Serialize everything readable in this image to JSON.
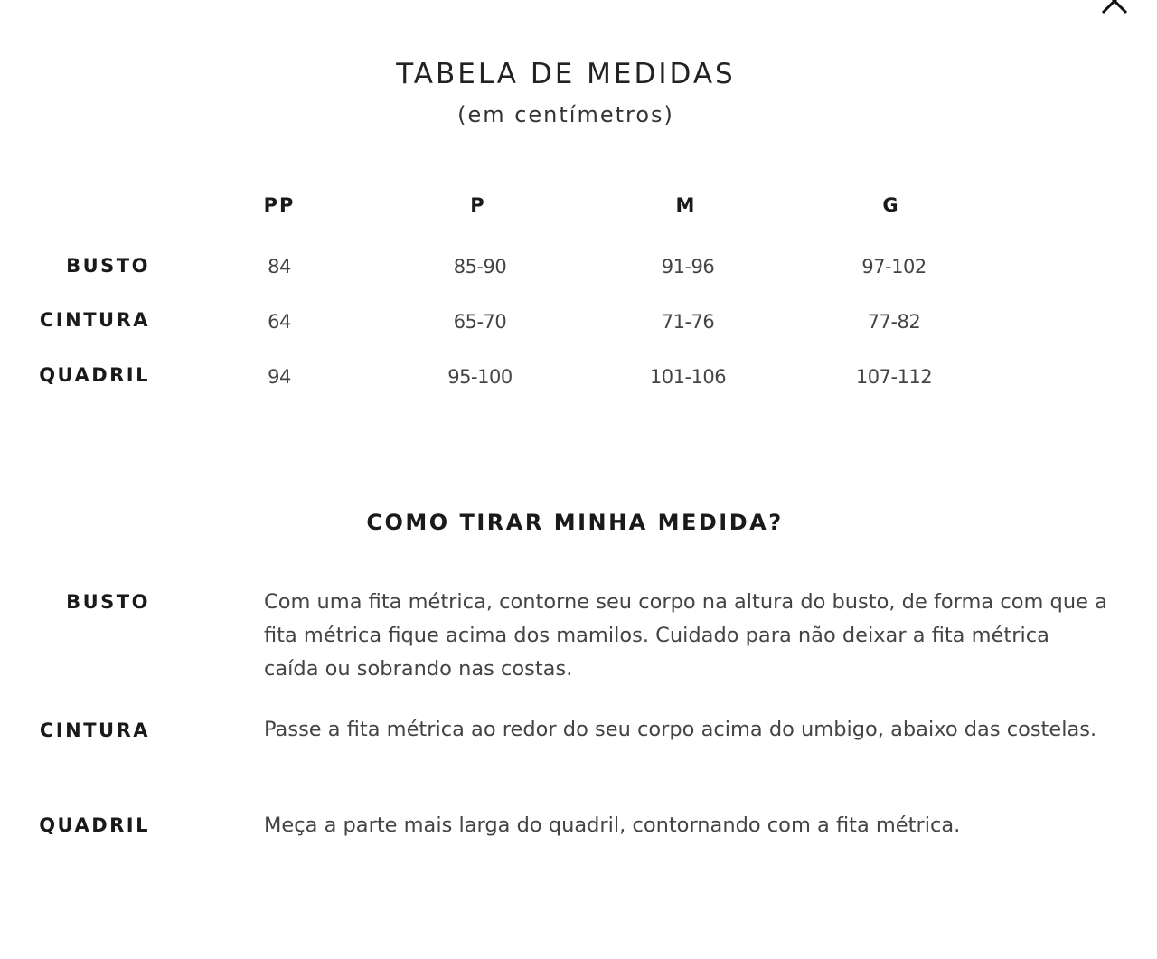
{
  "close_icon": "close-icon",
  "title": "TABELA DE MEDIDAS",
  "subtitle": "(em centímetros)",
  "table": {
    "columns": [
      "PP",
      "P",
      "M",
      "G"
    ],
    "rows": [
      {
        "label": "BUSTO",
        "values": [
          "84",
          "85-90",
          "91-96",
          "97-102"
        ]
      },
      {
        "label": "CINTURA",
        "values": [
          "64",
          "65-70",
          "71-76",
          "77-82"
        ]
      },
      {
        "label": "QUADRIL",
        "values": [
          "94",
          "95-100",
          "101-106",
          "107-112"
        ]
      }
    ]
  },
  "howto": {
    "title": "COMO TIRAR MINHA MEDIDA?",
    "items": [
      {
        "label": "BUSTO",
        "text": "Com uma fita métrica, contorne seu corpo na altura do busto, de forma com que a fita métrica fique acima dos mamilos. Cuidado para não deixar a fita métrica caída ou sobrando nas costas."
      },
      {
        "label": "CINTURA",
        "text": "Passe a fita métrica ao redor do seu corpo acima do umbigo, abaixo das costelas."
      },
      {
        "label": "QUADRIL",
        "text": "Meça a parte mais larga do quadril, contornando com a fita métrica."
      }
    ]
  }
}
